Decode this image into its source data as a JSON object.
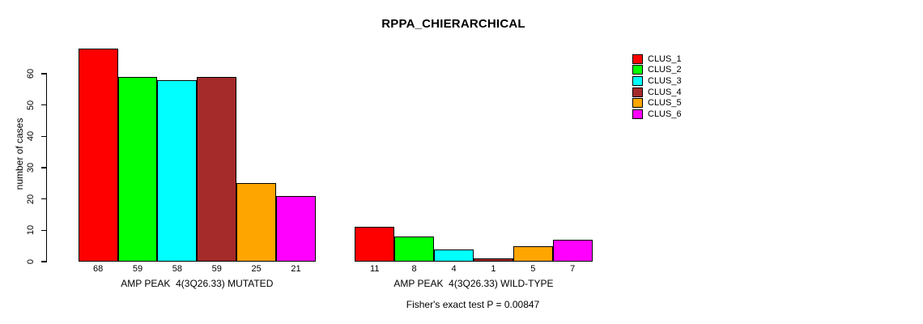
{
  "title": "RPPA_CHIERARCHICAL",
  "footer": "Fisher's exact test P = 0.00847",
  "colors": {
    "background": "#ffffff",
    "axis": "#000000",
    "text": "#000000"
  },
  "legend": {
    "position": "right",
    "entries": [
      "CLUS_1",
      "CLUS_2",
      "CLUS_3",
      "CLUS_4",
      "CLUS_5",
      "CLUS_6"
    ]
  },
  "chart_data": {
    "type": "bar",
    "title": "RPPA_CHIERARCHICAL",
    "xlabel": "",
    "ylabel": "number of cases",
    "ylim": [
      0,
      60
    ],
    "yticks": [
      0,
      10,
      20,
      30,
      40,
      50,
      60
    ],
    "grid": false,
    "legend_position": "right",
    "bar_value_labels": true,
    "categories": [
      "AMP PEAK  4(3Q26.33) MUTATED",
      "AMP PEAK  4(3Q26.33) WILD-TYPE"
    ],
    "series": [
      {
        "name": "CLUS_1",
        "color": "#FF0000",
        "values": [
          68,
          11
        ]
      },
      {
        "name": "CLUS_2",
        "color": "#00FF00",
        "values": [
          59,
          8
        ]
      },
      {
        "name": "CLUS_3",
        "color": "#00FFFF",
        "values": [
          58,
          4
        ]
      },
      {
        "name": "CLUS_4",
        "color": "#A52A2A",
        "values": [
          59,
          1
        ]
      },
      {
        "name": "CLUS_5",
        "color": "#FFA500",
        "values": [
          25,
          5
        ]
      },
      {
        "name": "CLUS_6",
        "color": "#FF00FF",
        "values": [
          21,
          7
        ]
      }
    ],
    "annotation": "Fisher's exact test P = 0.00847"
  }
}
